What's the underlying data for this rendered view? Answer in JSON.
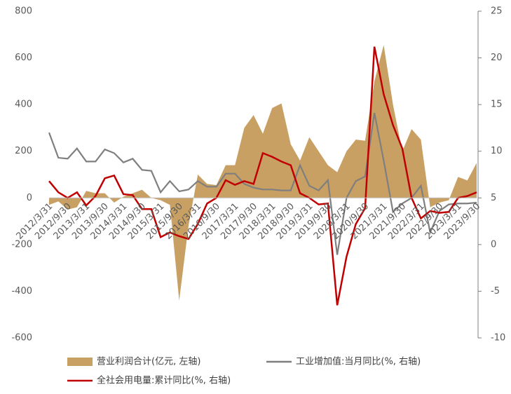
{
  "chart_data": {
    "type": "area-line",
    "categories": [
      "2012/3/31",
      null,
      "2012/9/30",
      null,
      "2013/3/31",
      null,
      "2013/9/30",
      null,
      "2014/3/31",
      null,
      "2014/9/30",
      null,
      "2015/3/31",
      null,
      "2015/9/30",
      null,
      "2016/3/31",
      null,
      "2016/9/30",
      null,
      "2017/3/31",
      null,
      "2017/9/30",
      null,
      "2018/3/31",
      null,
      "2018/9/30",
      null,
      "2019/3/31",
      null,
      "2019/9/30",
      null,
      "2020/3/31",
      null,
      "2020/9/30",
      null,
      "2021/3/31",
      null,
      "2021/9/30",
      null,
      "2022/3/31",
      null,
      "2022/9/30",
      null,
      "2023/3/31",
      null,
      "2023/9/30"
    ],
    "series": [
      {
        "name": "营业利润合计(亿元, 左轴)",
        "color": "#c9a063",
        "axis": "y",
        "values": [
          -30,
          -15,
          -50,
          -40,
          30,
          20,
          20,
          -20,
          5,
          20,
          35,
          0,
          -10,
          -30,
          -440,
          -120,
          100,
          60,
          55,
          140,
          140,
          300,
          355,
          275,
          385,
          405,
          230,
          160,
          260,
          200,
          140,
          110,
          200,
          250,
          245,
          500,
          655,
          400,
          200,
          295,
          250,
          -40,
          -20,
          -10,
          90,
          75,
          150
        ]
      },
      {
        "name": "工业增加值:当月同比(%, 右轴)",
        "color": "#7f7f7f",
        "axis": "y2",
        "values": [
          12,
          9.3,
          9.2,
          10.3,
          8.9,
          8.9,
          10.2,
          9.8,
          8.8,
          9.2,
          8.0,
          7.9,
          5.6,
          6.8,
          5.7,
          5.9,
          6.8,
          6.2,
          6.2,
          7.6,
          7.6,
          6.5,
          6.1,
          5.9,
          5.9,
          5.8,
          5.8,
          8.5,
          6.3,
          5.8,
          6.9,
          -1.1,
          5.0,
          6.8,
          7.3,
          14.1,
          9.0,
          3.5,
          4.4,
          5.0,
          6.3,
          1.3,
          3.6,
          4.3,
          4.4,
          4.4,
          4.5
        ]
      },
      {
        "name": "全社会用电量:累计同比(%, 右轴)",
        "color": "#c00000",
        "axis": "y2",
        "values": [
          6.8,
          5.6,
          5.0,
          5.6,
          4.2,
          5.2,
          7.1,
          7.4,
          5.4,
          5.3,
          3.8,
          3.8,
          0.8,
          1.3,
          0.9,
          0.6,
          2.2,
          4.4,
          5.0,
          6.9,
          6.4,
          6.8,
          6.5,
          9.8,
          9.4,
          8.9,
          8.5,
          5.5,
          5.0,
          4.3,
          4.4,
          -6.5,
          -1.3,
          2.2,
          3.9,
          21.2,
          16.1,
          12.8,
          10.3,
          5.0,
          2.8,
          3.6,
          3.4,
          3.5,
          5.0,
          5.2,
          5.6
        ]
      }
    ],
    "ylim": [
      -600,
      800
    ],
    "yticks": [
      -600,
      -400,
      -200,
      0,
      200,
      400,
      600,
      800
    ],
    "y2lim": [
      -10,
      25
    ],
    "y2ticks": [
      -10,
      -5,
      0,
      5,
      10,
      15,
      20,
      25
    ],
    "grid": false
  }
}
